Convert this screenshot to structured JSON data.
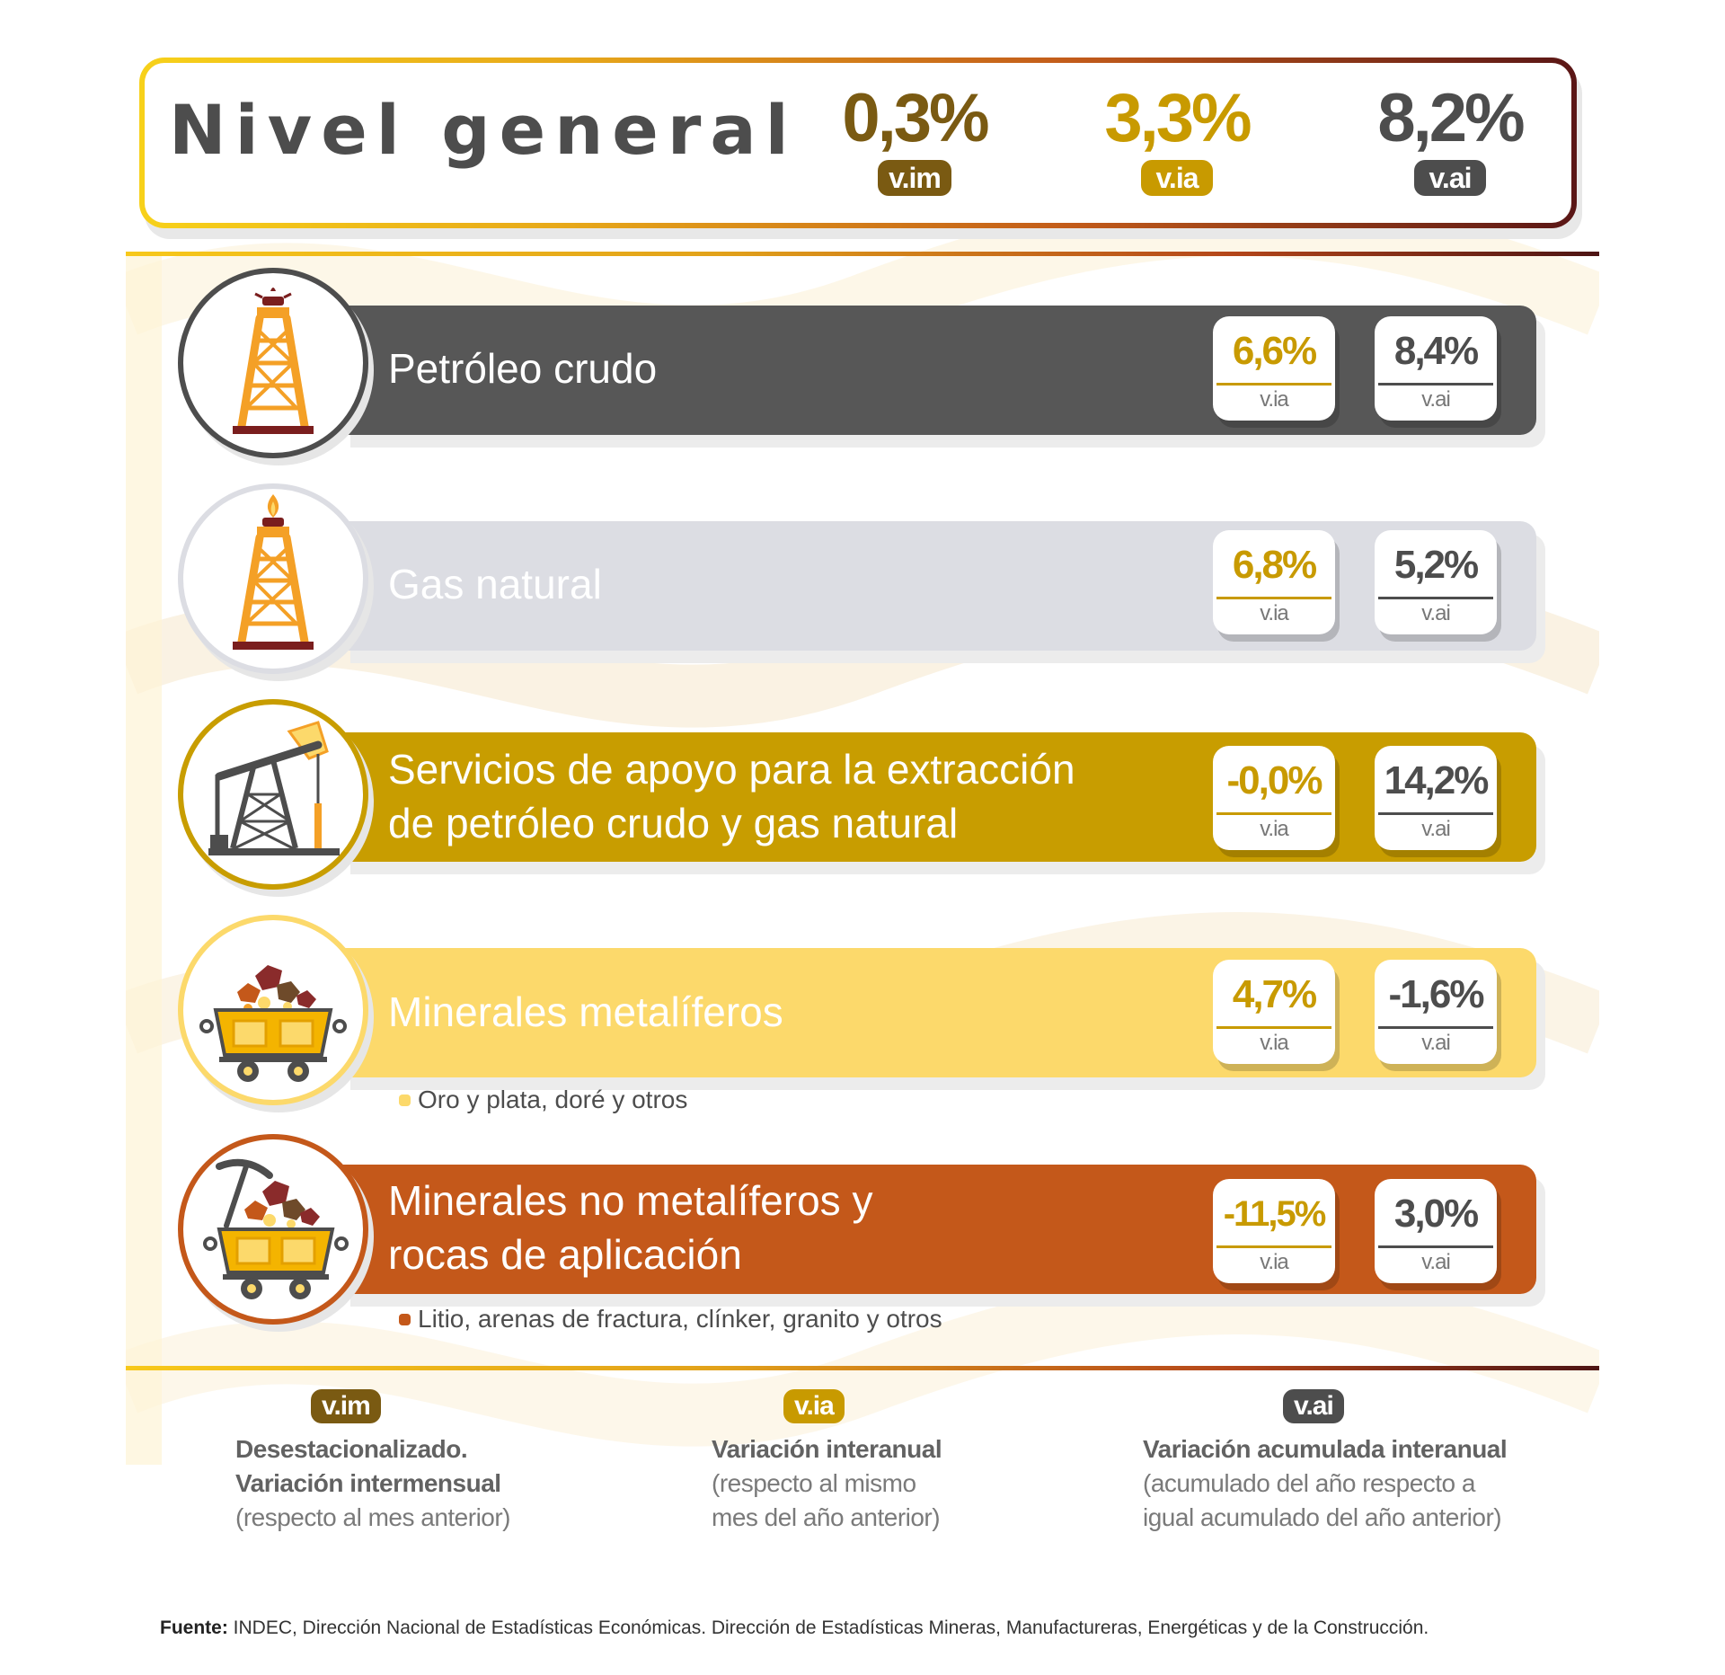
{
  "header": {
    "title": "Nivel general",
    "stats": [
      {
        "value": "0,3%",
        "label": "v.im",
        "color": "#7a5a12"
      },
      {
        "value": "3,3%",
        "label": "v.ia",
        "color": "#c89a00"
      },
      {
        "value": "8,2%",
        "label": "v.ai",
        "color": "#4d4d4d"
      }
    ]
  },
  "colors": {
    "dark_gray": "#575757",
    "light_gray": "#dcdde3",
    "gold": "#c89d00",
    "light_yellow": "#fcd96b",
    "orange": "#c4581a",
    "via_accent": "#c89a00",
    "vai_accent": "#4d4d4d"
  },
  "sectors": [
    {
      "name": "Petróleo crudo",
      "icon": "oil-derrick-icon",
      "via": "6,6%",
      "vai": "8,4%",
      "via_label": "v.ia",
      "vai_label": "v.ai",
      "note": ""
    },
    {
      "name": "Gas natural",
      "icon": "gas-derrick-icon",
      "via": "6,8%",
      "vai": "5,2%",
      "via_label": "v.ia",
      "vai_label": "v.ai",
      "note": ""
    },
    {
      "name": "Servicios de apoyo para la extracción de petróleo crudo y gas natural",
      "name_line1": "Servicios de apoyo para la extracción",
      "name_line2": "de petróleo crudo y gas natural",
      "icon": "pumpjack-icon",
      "via": "-0,0%",
      "vai": "14,2%",
      "via_label": "v.ia",
      "vai_label": "v.ai",
      "note": ""
    },
    {
      "name": "Minerales metalíferos",
      "icon": "mine-cart-icon",
      "via": "4,7%",
      "vai": "-1,6%",
      "via_label": "v.ia",
      "vai_label": "v.ai",
      "note": "Oro y plata, doré y otros"
    },
    {
      "name": "Minerales no metalíferos y rocas de aplicación",
      "name_line1": "Minerales no metalíferos y",
      "name_line2": "rocas de aplicación",
      "icon": "mine-cart-pickaxe-icon",
      "via": "-11,5%",
      "vai": "3,0%",
      "via_label": "v.ia",
      "vai_label": "v.ai",
      "note": "Litio, arenas de fractura, clínker, granito y otros"
    }
  ],
  "legend": [
    {
      "label": "v.im",
      "lines": [
        "Desestacionalizado.",
        "Variación intermensual"
      ],
      "sub": [
        "(respecto al mes anterior)"
      ]
    },
    {
      "label": "v.ia",
      "lines": [
        "Variación interanual"
      ],
      "sub": [
        "(respecto al mismo",
        "mes del año anterior)"
      ]
    },
    {
      "label": "v.ai",
      "lines": [
        "Variación acumulada interanual"
      ],
      "sub": [
        "(acumulado del año respecto a",
        "igual acumulado del año anterior)"
      ]
    }
  ],
  "source": {
    "prefix": "Fuente:",
    "text": " INDEC, Dirección Nacional de Estadísticas Económicas. Dirección de Estadísticas Mineras, Manufactureras, Energéticas y de la Construcción."
  }
}
